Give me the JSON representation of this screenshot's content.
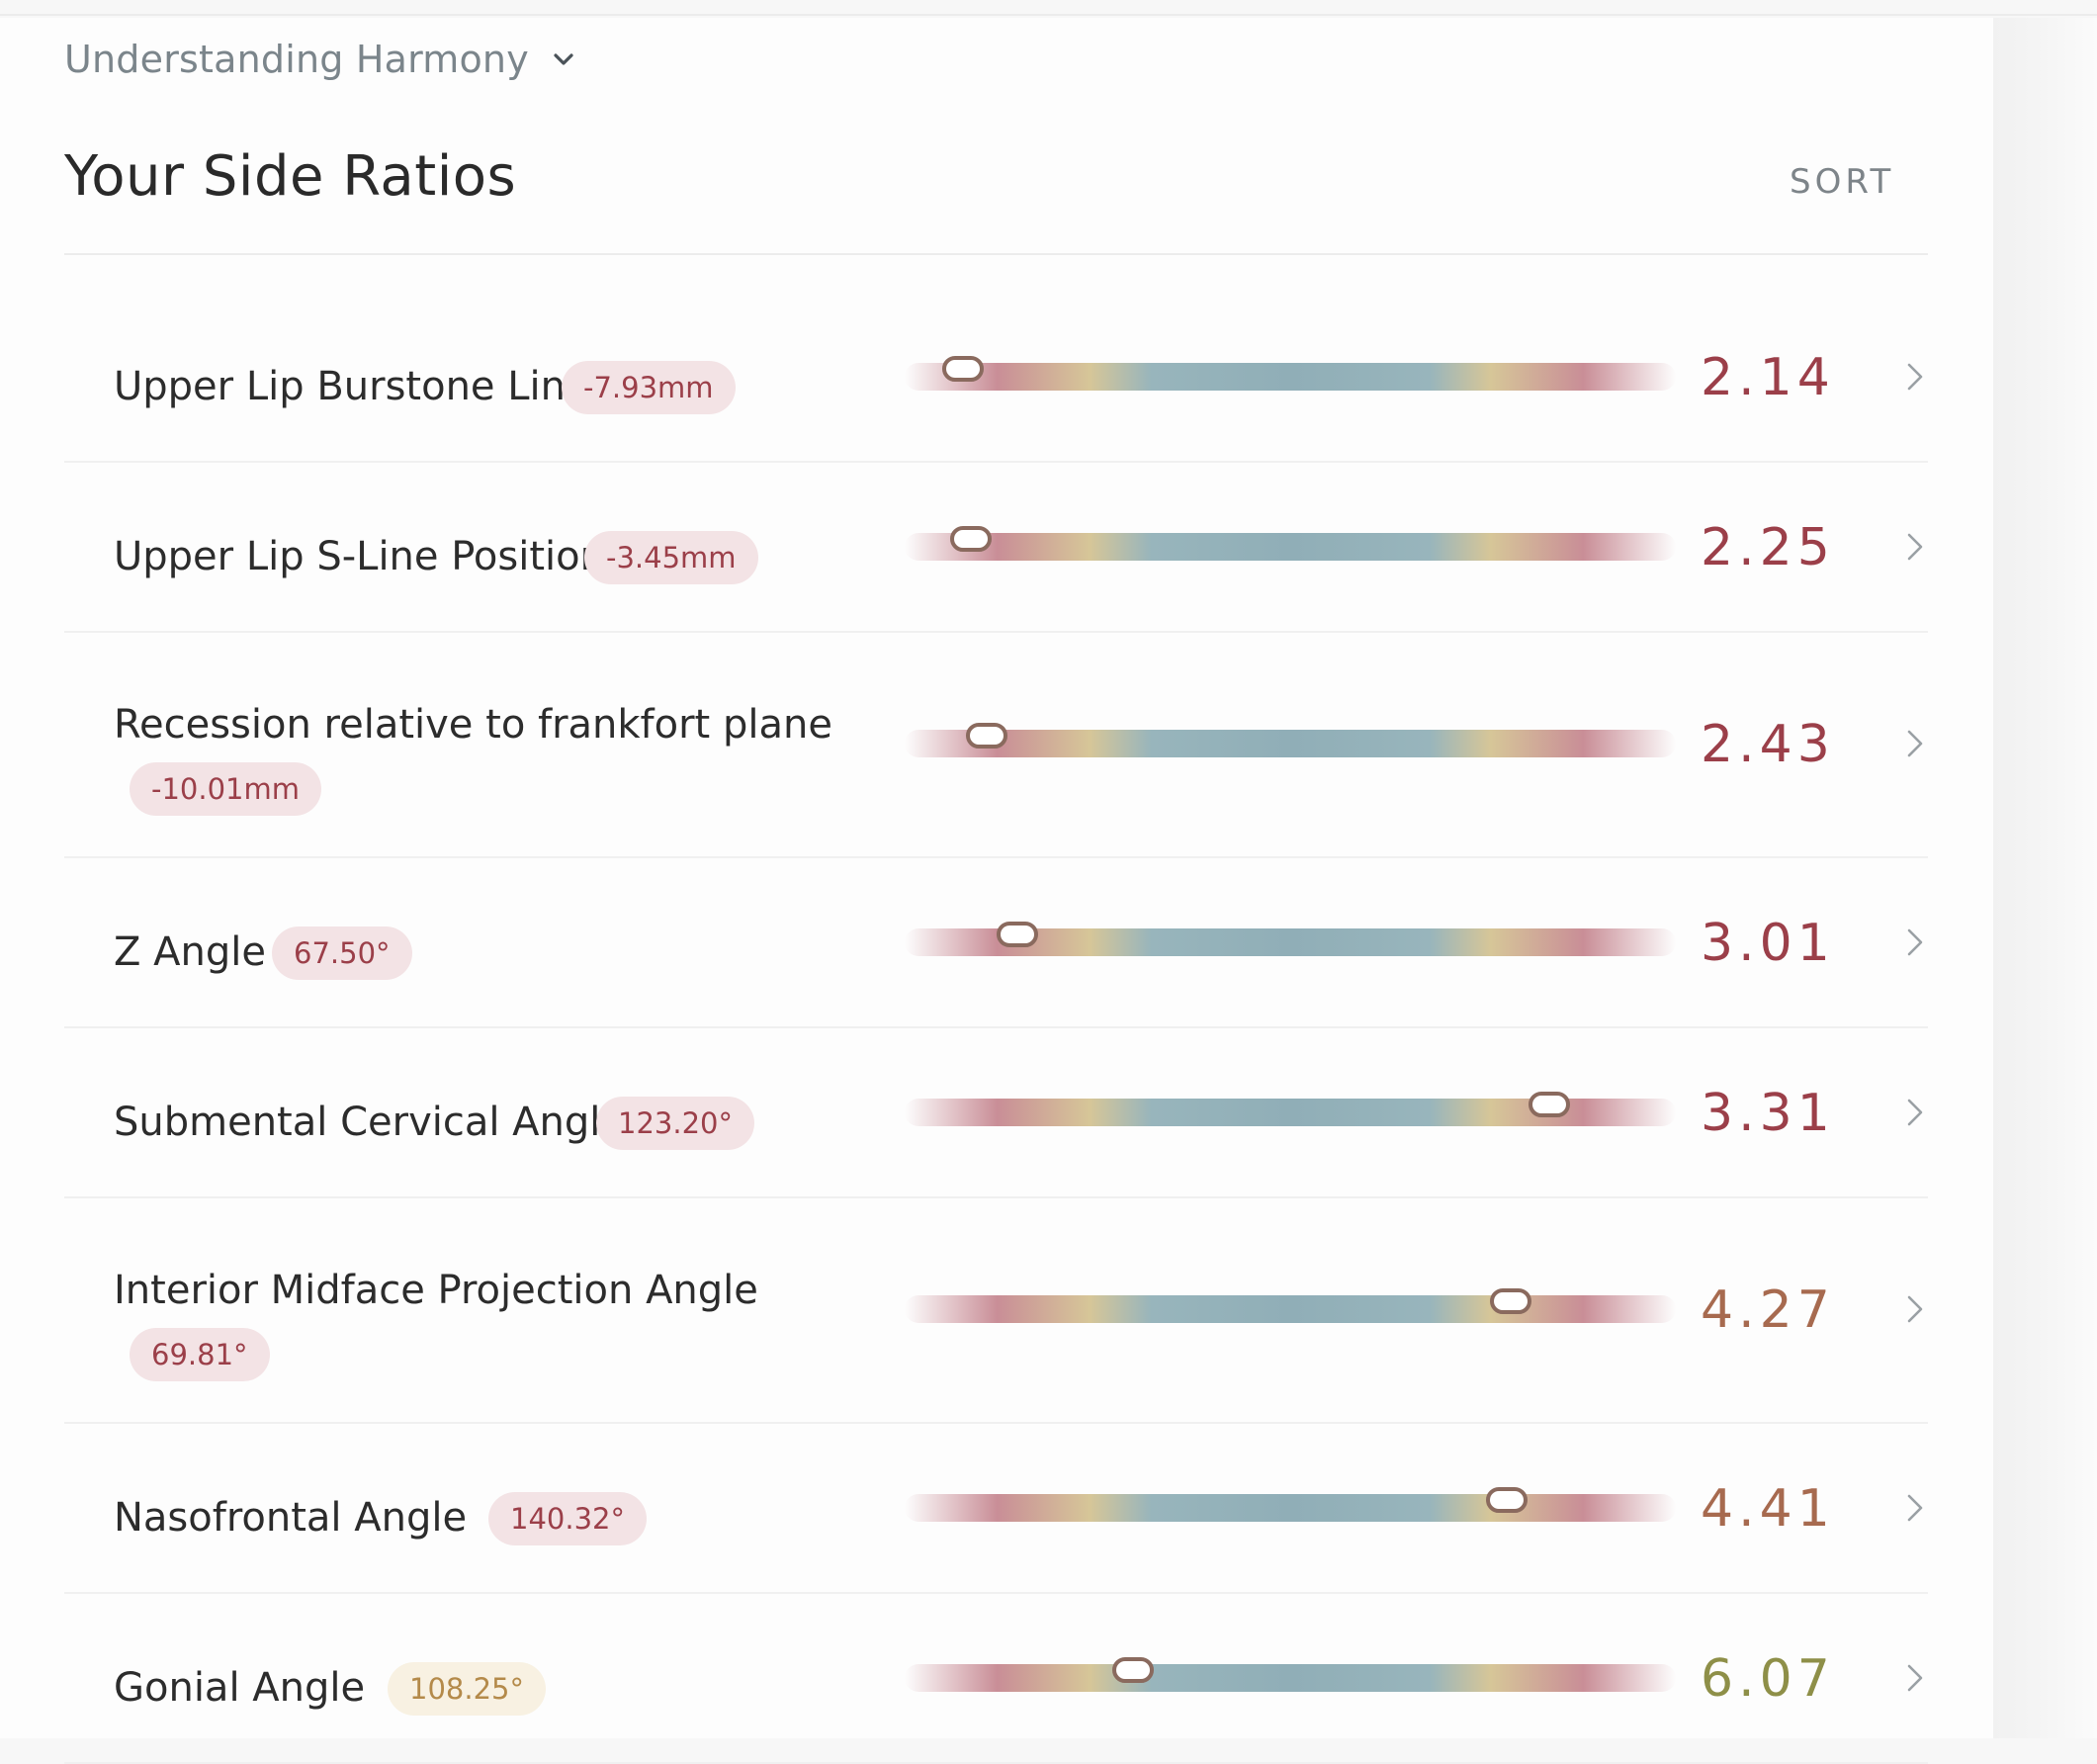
{
  "header": {
    "toggle_label": "Understanding Harmony",
    "title": "Your Side Ratios",
    "sort_label": "SORT"
  },
  "colors": {
    "red": "#9b3f49",
    "orange": "#a76a4f",
    "olive": "#8e8f48",
    "track_red": "#c98e97",
    "track_yellow": "#d6c698",
    "track_blue": "#90aeb7"
  },
  "ratios": [
    {
      "name": "Upper Lip Burstone Line",
      "measure": "-7.93mm",
      "score": "2.14",
      "position": 0.08,
      "tone": "red",
      "layout": "single"
    },
    {
      "name": "Upper Lip S-Line Position",
      "measure": "-3.45mm",
      "score": "2.25",
      "position": 0.09,
      "tone": "red",
      "layout": "single"
    },
    {
      "name": "Recession relative to frankfort plane",
      "measure": "-10.01mm",
      "score": "2.43",
      "position": 0.11,
      "tone": "red",
      "layout": "double"
    },
    {
      "name": "Z Angle",
      "measure": "67.50°",
      "score": "3.01",
      "position": 0.15,
      "tone": "red",
      "layout": "single"
    },
    {
      "name": "Submental Cervical Angle",
      "measure": "123.20°",
      "score": "3.31",
      "position": 0.84,
      "tone": "red",
      "layout": "single"
    },
    {
      "name": "Interior Midface Projection Angle",
      "measure": "69.81°",
      "score": "4.27",
      "position": 0.79,
      "tone": "orange",
      "layout": "double"
    },
    {
      "name": "Nasofrontal Angle",
      "measure": "140.32°",
      "score": "4.41",
      "position": 0.785,
      "tone": "orange",
      "layout": "single"
    },
    {
      "name": "Gonial Angle",
      "measure": "108.25°",
      "score": "6.07",
      "position": 0.3,
      "tone": "olive",
      "layout": "single"
    }
  ]
}
